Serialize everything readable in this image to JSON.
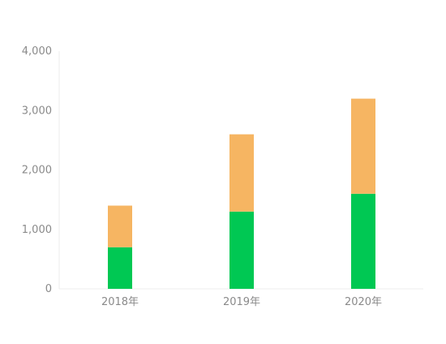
{
  "chart_data": {
    "type": "bar",
    "stacked": true,
    "categories": [
      "2018年",
      "2019年",
      "2020年"
    ],
    "series": [
      {
        "color": "#00c853",
        "values": [
          700,
          1300,
          1600
        ]
      },
      {
        "color": "#f6b562",
        "values": [
          700,
          1300,
          1600
        ]
      }
    ],
    "yticks": [
      "0",
      "1,000",
      "2,000",
      "3,000",
      "4,000"
    ],
    "ylim": [
      0,
      4000
    ],
    "grid": false,
    "legend": "none",
    "title": "",
    "xlabel": "",
    "ylabel": ""
  }
}
